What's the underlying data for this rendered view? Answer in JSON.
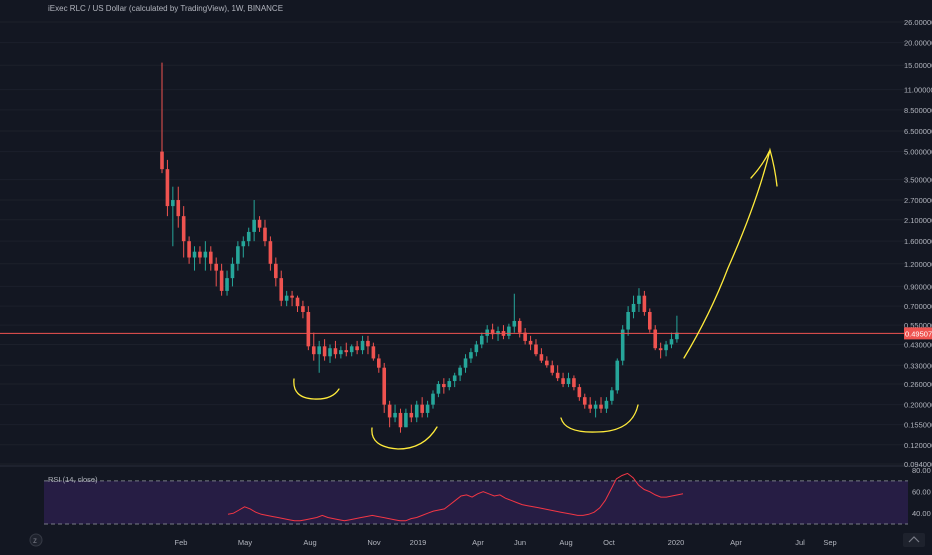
{
  "title": "iExec RLC / US Dollar (calculated by TradingView), 1W, BINANCE",
  "price_axis_labels": [
    "26.00000000",
    "20.00000000",
    "15.00000000",
    "11.00000000",
    "8.50000000",
    "6.50000000",
    "5.00000000",
    "3.50000000",
    "2.70000000",
    "2.10000000",
    "1.60000000",
    "1.20000000",
    "0.90000000",
    "0.70000000",
    "0.55000000",
    "0.43000000",
    "0.33000000",
    "0.26000000",
    "0.20000000",
    "0.15500000",
    "0.12000000",
    "0.09400000"
  ],
  "current_price_label": "0.49507969",
  "time_axis_labels": [
    "Feb",
    "May",
    "Aug",
    "Nov",
    "2019",
    "Apr",
    "Jun",
    "Aug",
    "Oct",
    "2020",
    "Apr",
    "Jul",
    "Sep"
  ],
  "indicator": {
    "label": "RSI (14, close)",
    "axis_labels": [
      "80.00",
      "60.00",
      "40.00"
    ]
  },
  "colors": {
    "background": "#131722",
    "up": "#26a69a",
    "down": "#ef5350",
    "price_line": "#ef5350",
    "drawing": "#ffeb3b",
    "rsi_line": "#f23645",
    "rsi_band": "#2a1f4a"
  },
  "chart_data": {
    "type": "candlestick",
    "title": "iExec RLC / US Dollar (calculated by TradingView), 1W, BINANCE",
    "interval": "1W",
    "y_scale": "log",
    "ylim": [
      0.094,
      26
    ],
    "current_price": 0.49507969,
    "ohlc": [
      [
        5.0,
        15.5,
        3.8,
        4.0
      ],
      [
        4.0,
        4.5,
        2.2,
        2.5
      ],
      [
        2.5,
        3.2,
        1.5,
        2.7
      ],
      [
        2.7,
        3.2,
        1.9,
        2.2
      ],
      [
        2.2,
        2.5,
        1.3,
        1.6
      ],
      [
        1.6,
        1.7,
        1.2,
        1.3
      ],
      [
        1.3,
        1.5,
        1.1,
        1.4
      ],
      [
        1.4,
        1.5,
        1.2,
        1.3
      ],
      [
        1.3,
        1.6,
        1.1,
        1.4
      ],
      [
        1.4,
        1.5,
        1.1,
        1.2
      ],
      [
        1.2,
        1.3,
        0.9,
        1.1
      ],
      [
        1.1,
        1.2,
        0.8,
        0.85
      ],
      [
        0.85,
        1.1,
        0.8,
        1.0
      ],
      [
        1.0,
        1.3,
        0.9,
        1.2
      ],
      [
        1.2,
        1.6,
        1.1,
        1.5
      ],
      [
        1.5,
        1.7,
        1.3,
        1.6
      ],
      [
        1.6,
        1.9,
        1.5,
        1.8
      ],
      [
        1.8,
        2.7,
        1.6,
        2.1
      ],
      [
        2.1,
        2.2,
        1.8,
        1.9
      ],
      [
        1.9,
        2.1,
        1.5,
        1.6
      ],
      [
        1.6,
        1.7,
        1.1,
        1.2
      ],
      [
        1.2,
        1.3,
        0.9,
        1.0
      ],
      [
        1.0,
        1.1,
        0.7,
        0.75
      ],
      [
        0.75,
        0.85,
        0.7,
        0.8
      ],
      [
        0.8,
        0.85,
        0.7,
        0.78
      ],
      [
        0.78,
        0.8,
        0.65,
        0.7
      ],
      [
        0.7,
        0.75,
        0.6,
        0.65
      ],
      [
        0.65,
        0.7,
        0.4,
        0.42
      ],
      [
        0.42,
        0.5,
        0.35,
        0.38
      ],
      [
        0.38,
        0.45,
        0.3,
        0.42
      ],
      [
        0.42,
        0.46,
        0.35,
        0.37
      ],
      [
        0.37,
        0.43,
        0.34,
        0.41
      ],
      [
        0.41,
        0.45,
        0.36,
        0.38
      ],
      [
        0.38,
        0.42,
        0.36,
        0.4
      ],
      [
        0.4,
        0.44,
        0.37,
        0.39
      ],
      [
        0.39,
        0.43,
        0.37,
        0.42
      ],
      [
        0.42,
        0.45,
        0.38,
        0.4
      ],
      [
        0.4,
        0.48,
        0.38,
        0.45
      ],
      [
        0.45,
        0.48,
        0.38,
        0.42
      ],
      [
        0.42,
        0.44,
        0.35,
        0.36
      ],
      [
        0.36,
        0.38,
        0.3,
        0.32
      ],
      [
        0.32,
        0.34,
        0.18,
        0.2
      ],
      [
        0.2,
        0.21,
        0.15,
        0.17
      ],
      [
        0.17,
        0.2,
        0.16,
        0.18
      ],
      [
        0.18,
        0.19,
        0.14,
        0.15
      ],
      [
        0.15,
        0.19,
        0.15,
        0.18
      ],
      [
        0.18,
        0.2,
        0.16,
        0.17
      ],
      [
        0.17,
        0.21,
        0.16,
        0.2
      ],
      [
        0.2,
        0.22,
        0.17,
        0.18
      ],
      [
        0.18,
        0.21,
        0.17,
        0.2
      ],
      [
        0.2,
        0.24,
        0.19,
        0.23
      ],
      [
        0.23,
        0.27,
        0.22,
        0.26
      ],
      [
        0.26,
        0.28,
        0.23,
        0.25
      ],
      [
        0.25,
        0.28,
        0.24,
        0.27
      ],
      [
        0.27,
        0.3,
        0.25,
        0.29
      ],
      [
        0.29,
        0.33,
        0.27,
        0.32
      ],
      [
        0.32,
        0.38,
        0.3,
        0.36
      ],
      [
        0.36,
        0.41,
        0.34,
        0.39
      ],
      [
        0.39,
        0.45,
        0.37,
        0.43
      ],
      [
        0.43,
        0.5,
        0.41,
        0.48
      ],
      [
        0.48,
        0.55,
        0.44,
        0.52
      ],
      [
        0.52,
        0.56,
        0.46,
        0.49
      ],
      [
        0.49,
        0.54,
        0.45,
        0.51
      ],
      [
        0.51,
        0.55,
        0.46,
        0.48
      ],
      [
        0.48,
        0.56,
        0.46,
        0.54
      ],
      [
        0.54,
        0.82,
        0.5,
        0.58
      ],
      [
        0.58,
        0.6,
        0.47,
        0.5
      ],
      [
        0.5,
        0.53,
        0.43,
        0.45
      ],
      [
        0.45,
        0.48,
        0.4,
        0.43
      ],
      [
        0.43,
        0.46,
        0.37,
        0.38
      ],
      [
        0.38,
        0.41,
        0.34,
        0.35
      ],
      [
        0.35,
        0.37,
        0.32,
        0.33
      ],
      [
        0.33,
        0.35,
        0.29,
        0.3
      ],
      [
        0.3,
        0.33,
        0.27,
        0.28
      ],
      [
        0.28,
        0.3,
        0.25,
        0.26
      ],
      [
        0.26,
        0.3,
        0.25,
        0.28
      ],
      [
        0.28,
        0.29,
        0.24,
        0.25
      ],
      [
        0.25,
        0.26,
        0.21,
        0.22
      ],
      [
        0.22,
        0.23,
        0.19,
        0.2
      ],
      [
        0.2,
        0.22,
        0.18,
        0.19
      ],
      [
        0.19,
        0.21,
        0.17,
        0.2
      ],
      [
        0.2,
        0.22,
        0.18,
        0.19
      ],
      [
        0.19,
        0.22,
        0.18,
        0.21
      ],
      [
        0.21,
        0.25,
        0.2,
        0.24
      ],
      [
        0.24,
        0.36,
        0.23,
        0.35
      ],
      [
        0.35,
        0.55,
        0.33,
        0.52
      ],
      [
        0.52,
        0.7,
        0.48,
        0.65
      ],
      [
        0.65,
        0.8,
        0.6,
        0.72
      ],
      [
        0.72,
        0.88,
        0.65,
        0.8
      ],
      [
        0.8,
        0.85,
        0.62,
        0.65
      ],
      [
        0.65,
        0.68,
        0.5,
        0.52
      ],
      [
        0.52,
        0.55,
        0.4,
        0.41
      ],
      [
        0.41,
        0.44,
        0.36,
        0.4
      ],
      [
        0.4,
        0.45,
        0.37,
        0.43
      ],
      [
        0.43,
        0.5,
        0.41,
        0.46
      ],
      [
        0.46,
        0.62,
        0.44,
        0.5
      ]
    ],
    "rsi": [
      39,
      40,
      43,
      46,
      44,
      41,
      39,
      38,
      37,
      36,
      35,
      34,
      33,
      33,
      34,
      35,
      36,
      38,
      36,
      35,
      34,
      33,
      34,
      35,
      36,
      37,
      38,
      37,
      36,
      35,
      34,
      33,
      33,
      35,
      36,
      38,
      40,
      42,
      43,
      44,
      48,
      52,
      56,
      57,
      55,
      58,
      60,
      58,
      56,
      57,
      54,
      52,
      50,
      48,
      47,
      46,
      45,
      44,
      43,
      42,
      41,
      40,
      39,
      38,
      38,
      39,
      41,
      45,
      52,
      62,
      72,
      75,
      77,
      73,
      66,
      62,
      60,
      57,
      55,
      55,
      56,
      57,
      58
    ],
    "rsi_band": [
      30,
      70
    ],
    "indicator_ylim": [
      30,
      82
    ]
  }
}
